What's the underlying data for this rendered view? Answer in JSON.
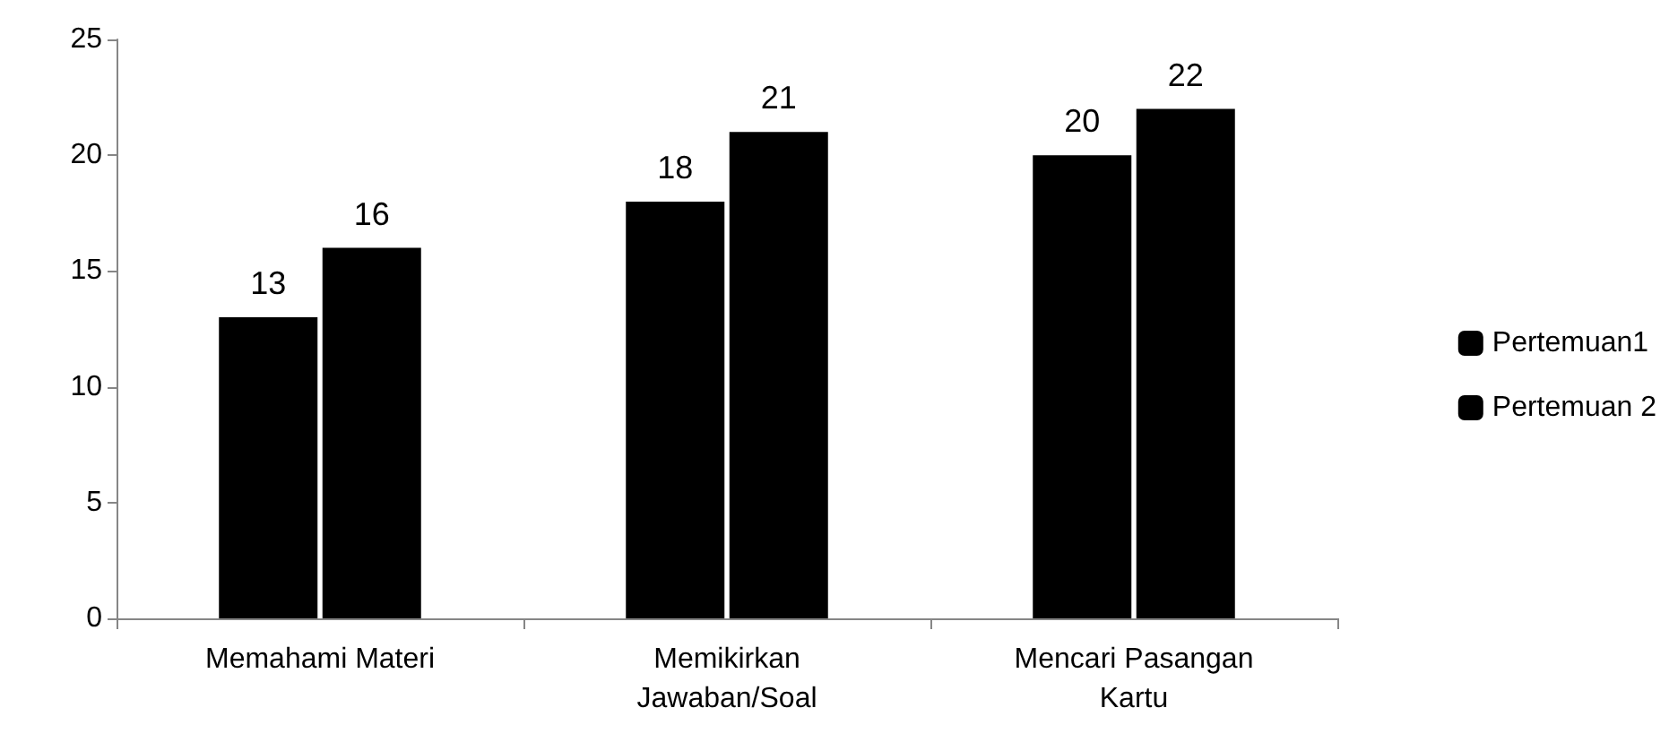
{
  "chart_data": {
    "type": "bar",
    "categories": [
      "Memahami Materi",
      "Memikirkan\nJawaban/Soal",
      "Mencari Pasangan\nKartu"
    ],
    "series": [
      {
        "name": "Pertemuan1",
        "color": "#000000",
        "values": [
          13,
          18,
          20
        ]
      },
      {
        "name": "Pertemuan 2",
        "color": "#000000",
        "values": [
          16,
          21,
          22
        ]
      }
    ],
    "ylim": [
      0,
      25
    ],
    "yticks": [
      0,
      5,
      10,
      15,
      20,
      25
    ],
    "grid": false,
    "legend": "right",
    "data_labels": true
  }
}
